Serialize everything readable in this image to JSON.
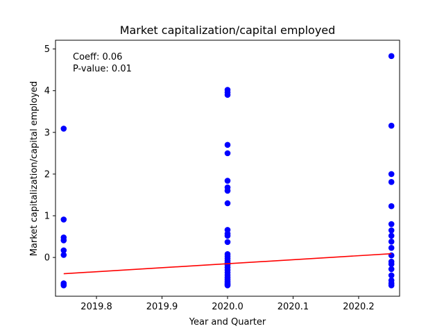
{
  "chart_data": {
    "type": "scatter",
    "title": "Market capitalization/capital employed",
    "xlabel": "Year and Quarter",
    "ylabel": "Market capitalization/capital employed",
    "xlim": [
      2019.7375,
      2020.2625
    ],
    "ylim": [
      -0.93,
      5.21
    ],
    "x_ticks": [
      2019.8,
      2019.9,
      2020.0,
      2020.1,
      2020.2
    ],
    "x_tick_labels": [
      "2019.8",
      "2019.9",
      "2020.0",
      "2020.1",
      "2020.2"
    ],
    "y_ticks": [
      0,
      1,
      2,
      3,
      4,
      5
    ],
    "y_tick_labels": [
      "0",
      "1",
      "2",
      "3",
      "4",
      "5"
    ],
    "grid": false,
    "annotation_lines": [
      "Coeff: 0.06",
      "P-value: 0.01"
    ],
    "series": [
      {
        "kind": "scatter",
        "color": "#0000ff",
        "points": [
          [
            2019.75,
            3.09
          ],
          [
            2019.75,
            0.91
          ],
          [
            2019.75,
            0.48
          ],
          [
            2019.75,
            0.41
          ],
          [
            2019.75,
            0.17
          ],
          [
            2019.75,
            0.06
          ],
          [
            2019.75,
            -0.62
          ],
          [
            2019.75,
            -0.65
          ],
          [
            2019.75,
            -0.67
          ],
          [
            2020.0,
            4.02
          ],
          [
            2020.0,
            3.96
          ],
          [
            2020.0,
            3.9
          ],
          [
            2020.0,
            2.7
          ],
          [
            2020.0,
            2.5
          ],
          [
            2020.0,
            1.84
          ],
          [
            2020.0,
            1.68
          ],
          [
            2020.0,
            1.6
          ],
          [
            2020.0,
            1.3
          ],
          [
            2020.0,
            0.66
          ],
          [
            2020.0,
            0.57
          ],
          [
            2020.0,
            0.52
          ],
          [
            2020.0,
            0.37
          ],
          [
            2020.0,
            0.08
          ],
          [
            2020.0,
            0.03
          ],
          [
            2020.0,
            -0.02
          ],
          [
            2020.0,
            -0.08
          ],
          [
            2020.0,
            -0.13
          ],
          [
            2020.0,
            -0.18
          ],
          [
            2020.0,
            -0.24
          ],
          [
            2020.0,
            -0.3
          ],
          [
            2020.0,
            -0.36
          ],
          [
            2020.0,
            -0.42
          ],
          [
            2020.0,
            -0.48
          ],
          [
            2020.0,
            -0.53
          ],
          [
            2020.0,
            -0.58
          ],
          [
            2020.0,
            -0.62
          ],
          [
            2020.0,
            -0.65
          ],
          [
            2020.0,
            -0.67
          ],
          [
            2020.25,
            4.83
          ],
          [
            2020.25,
            3.16
          ],
          [
            2020.25,
            2.0
          ],
          [
            2020.25,
            1.81
          ],
          [
            2020.25,
            1.23
          ],
          [
            2020.25,
            0.8
          ],
          [
            2020.25,
            0.65
          ],
          [
            2020.25,
            0.52
          ],
          [
            2020.25,
            0.38
          ],
          [
            2020.25,
            0.23
          ],
          [
            2020.25,
            0.05
          ],
          [
            2020.25,
            -0.1
          ],
          [
            2020.25,
            -0.16
          ],
          [
            2020.25,
            -0.28
          ],
          [
            2020.25,
            -0.43
          ],
          [
            2020.25,
            -0.55
          ],
          [
            2020.25,
            -0.62
          ],
          [
            2020.25,
            -0.67
          ]
        ]
      },
      {
        "kind": "line",
        "color": "#ff0000",
        "points": [
          [
            2019.75,
            -0.39
          ],
          [
            2020.25,
            0.09
          ]
        ]
      }
    ]
  }
}
